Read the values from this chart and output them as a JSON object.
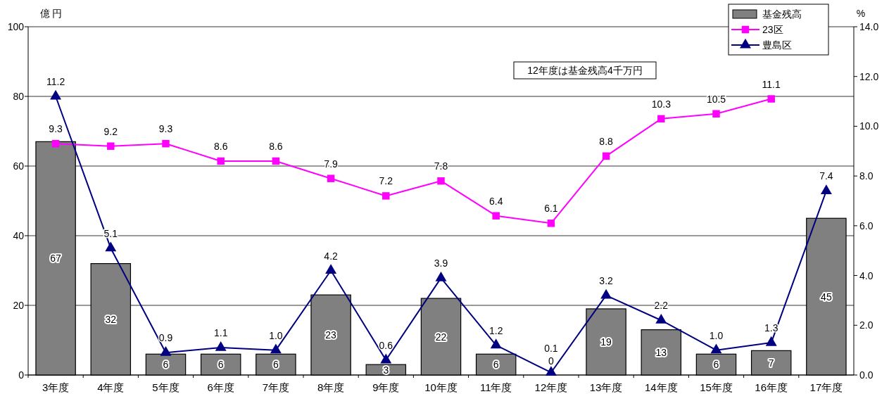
{
  "chart_data": {
    "type": "bar",
    "categories": [
      "3年度",
      "4年度",
      "5年度",
      "6年度",
      "7年度",
      "8年度",
      "9年度",
      "10年度",
      "11年度",
      "12年度",
      "13年度",
      "14年度",
      "15年度",
      "16年度",
      "17年度"
    ],
    "series": [
      {
        "name": "基金残高",
        "color": "#808080",
        "values": [
          67,
          32,
          6,
          6,
          6,
          23,
          3,
          22,
          6,
          0,
          19,
          13,
          6,
          7,
          45
        ],
        "value_labels": [
          "67",
          "32",
          "6",
          "6",
          "6",
          "23",
          "3",
          "22",
          "6",
          "0",
          "19",
          "13",
          "6",
          "7",
          "45"
        ]
      },
      {
        "name": "23区",
        "type": "line",
        "axis": "y2",
        "color": "#ff00ff",
        "marker": "square",
        "values": [
          9.3,
          9.2,
          9.3,
          8.6,
          8.6,
          7.9,
          7.2,
          7.8,
          6.4,
          6.1,
          8.8,
          10.3,
          10.5,
          11.1,
          null
        ],
        "value_labels": [
          "9.3",
          "9.2",
          "9.3",
          "8.6",
          "8.6",
          "7.9",
          "7.2",
          "7.8",
          "6.4",
          "6.1",
          "8.8",
          "10.3",
          "10.5",
          "11.1",
          null
        ]
      },
      {
        "name": "豊島区",
        "type": "line",
        "axis": "y2",
        "color": "#000080",
        "marker": "triangle",
        "values": [
          11.2,
          5.1,
          0.9,
          1.1,
          1.0,
          4.2,
          0.6,
          3.9,
          1.2,
          0.1,
          3.2,
          2.2,
          1.0,
          1.3,
          7.4
        ],
        "value_labels": [
          "11.2",
          "5.1",
          "0.9",
          "1.1",
          "1.0",
          "4.2",
          "0.6",
          "3.9",
          "1.2",
          "0.1",
          "3.2",
          "2.2",
          "1.0",
          "1.3",
          "7.4"
        ]
      }
    ],
    "ylabel": "億円",
    "y2label": "%",
    "ylim": [
      0,
      100
    ],
    "yticks": [
      0,
      20,
      40,
      60,
      80,
      100
    ],
    "y2lim": [
      0,
      14
    ],
    "y2ticks": [
      {
        "value": 0,
        "label": "0.0"
      },
      {
        "value": 2,
        "label": "2.0"
      },
      {
        "value": 4,
        "label": "4.0"
      },
      {
        "value": 6,
        "label": "6.0"
      },
      {
        "value": 8,
        "label": "8.0"
      },
      {
        "value": 10,
        "label": "10.0"
      },
      {
        "value": 12,
        "label": "12.0"
      },
      {
        "value": 14,
        "label": "14.0"
      }
    ],
    "grid": "y",
    "legend": "top right",
    "annotations": [
      "12年度は基金残高4千万円"
    ]
  }
}
